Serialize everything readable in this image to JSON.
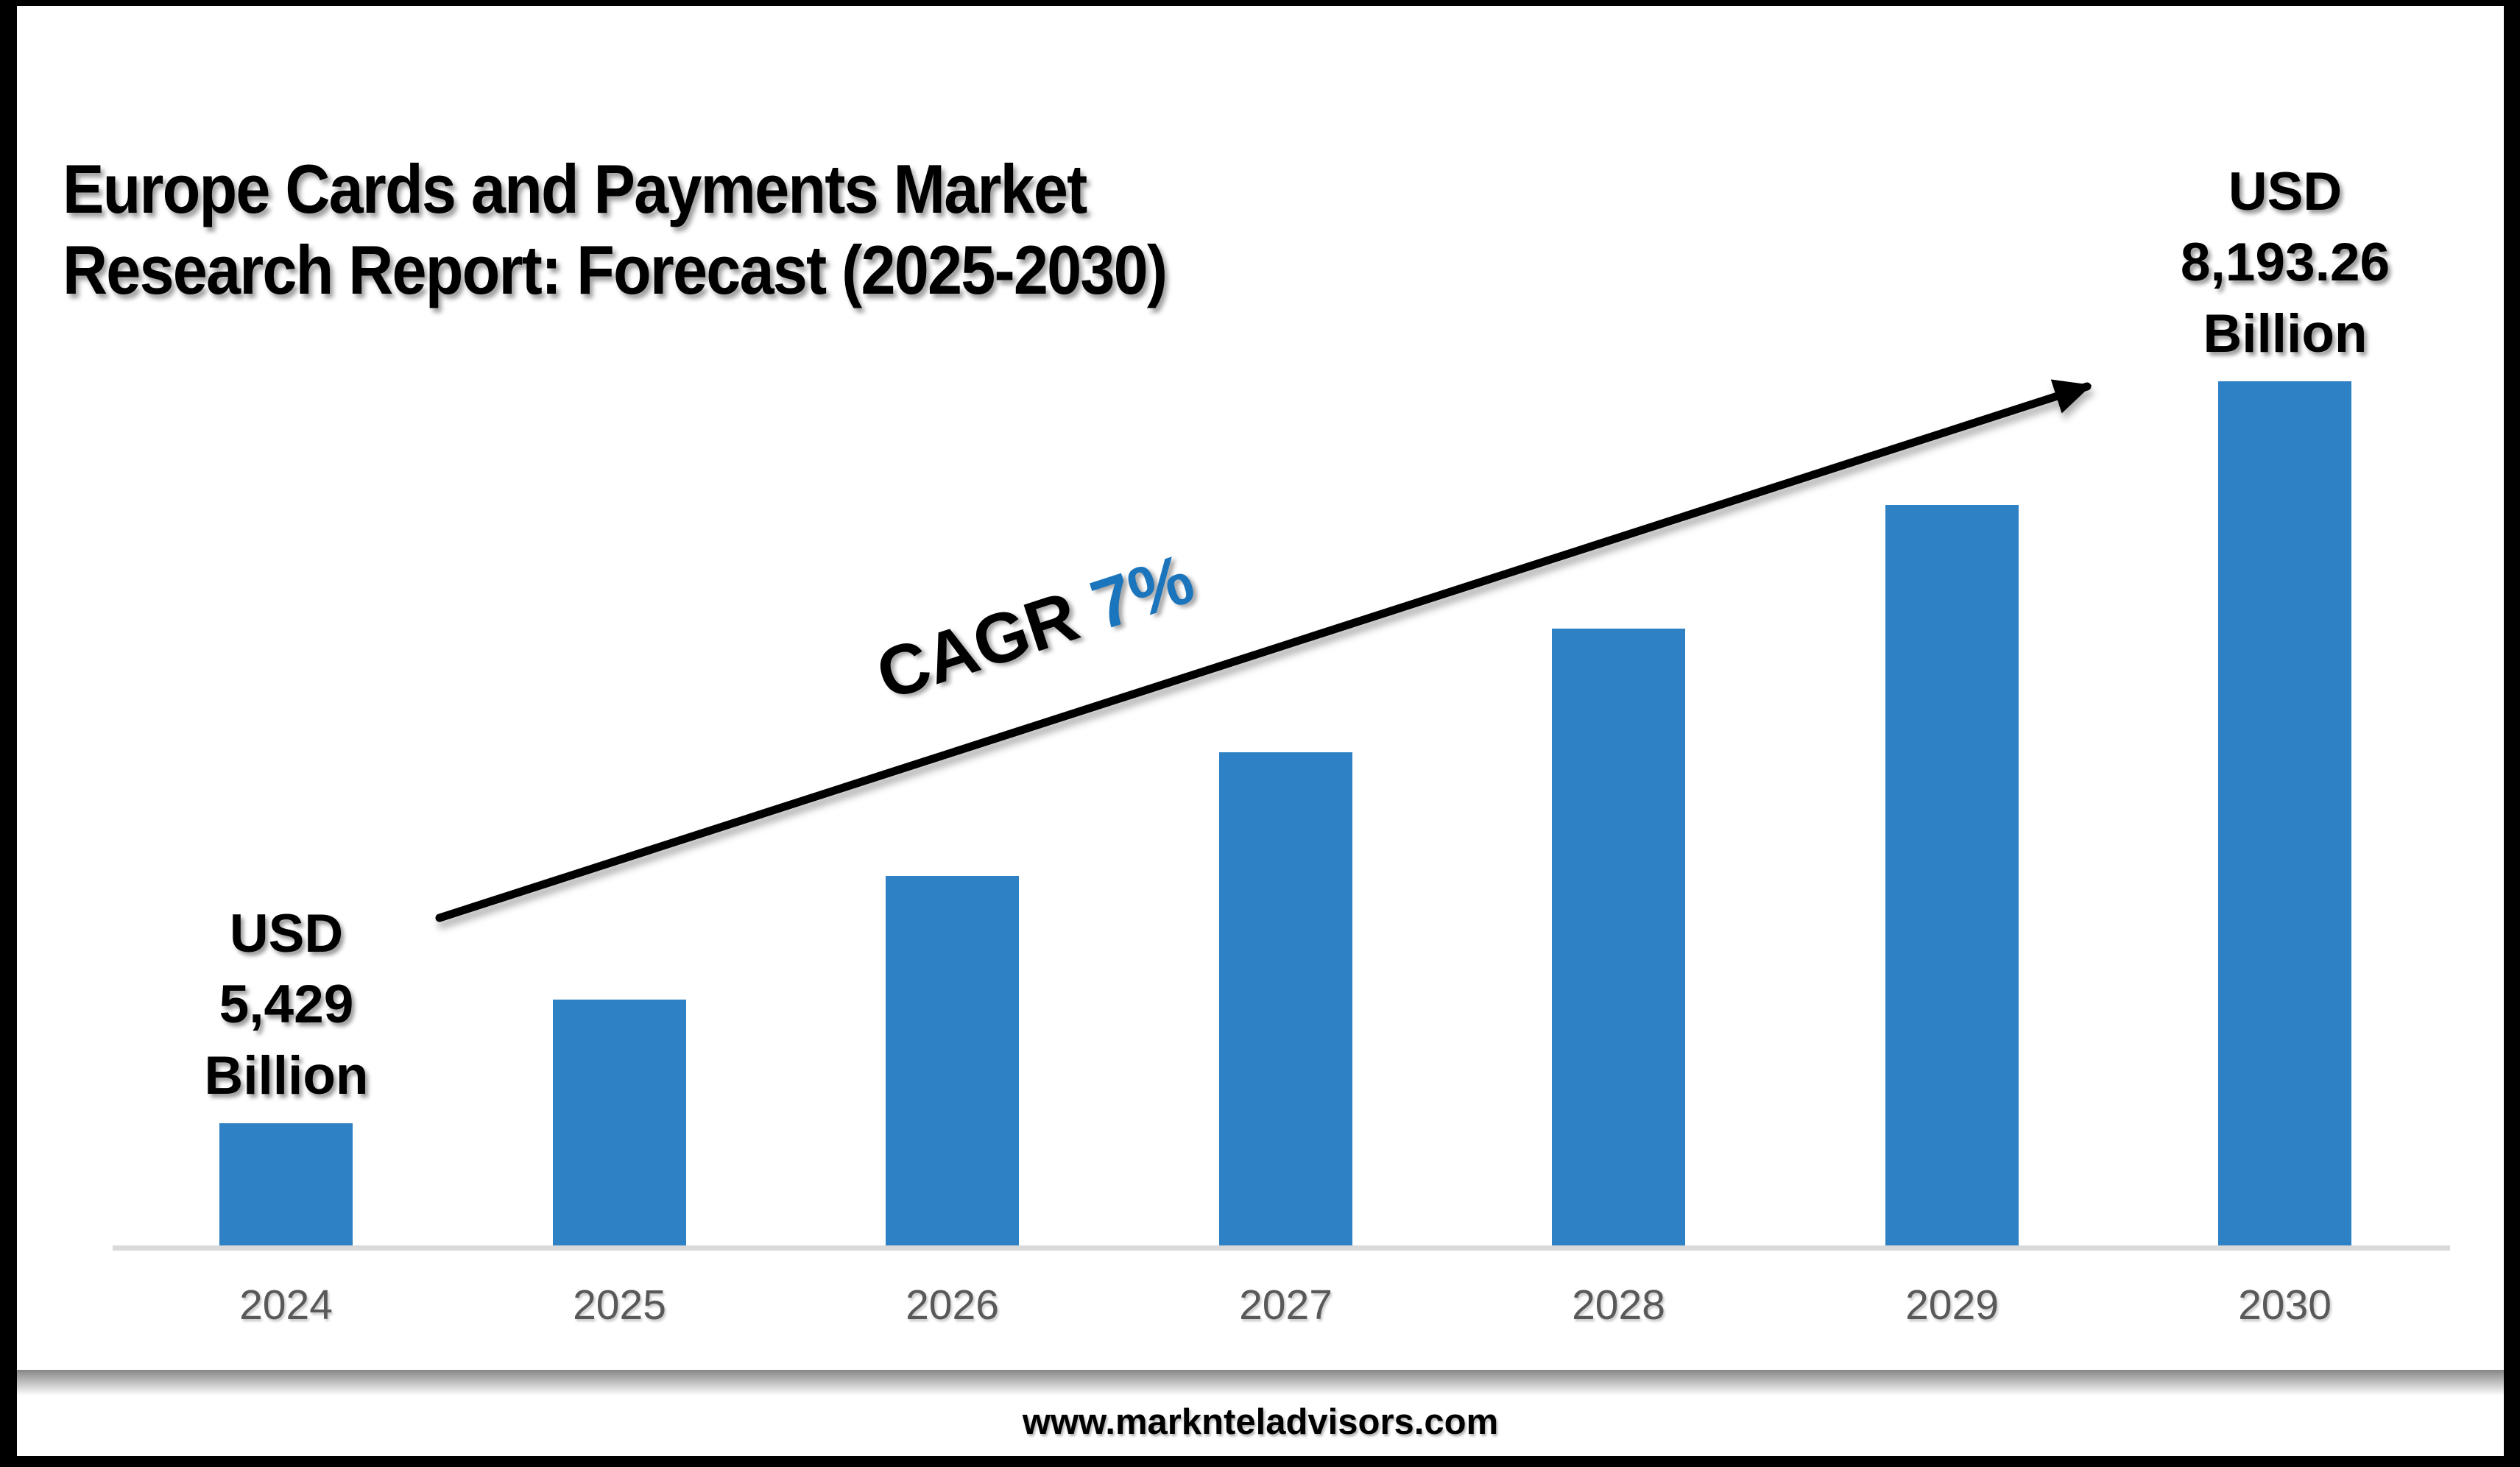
{
  "title": {
    "line1": "Europe Cards and Payments Market",
    "line2": "Research Report: Forecast (2025-2030)"
  },
  "annotation": {
    "cagr_label": "CAGR",
    "cagr_value": "7%"
  },
  "footer": {
    "url": "www.marknteladvisors.com"
  },
  "colors": {
    "bar": "#2E81C4",
    "accent": "#1B75BC",
    "axis_line": "#D9D9D9",
    "year_label": "#595959",
    "frame": "#000000",
    "background": "#FFFFFF"
  },
  "chart_data": {
    "type": "bar",
    "title": "Europe Cards and Payments Market Research Report: Forecast (2025-2030)",
    "unit": "USD Billion",
    "categories": [
      "2024",
      "2025",
      "2026",
      "2027",
      "2028",
      "2029",
      "2030"
    ],
    "values": [
      5429,
      5890,
      6350,
      6811,
      7272,
      7733,
      8193.26
    ],
    "labeled_values": {
      "2024": "USD 5,429 Billion",
      "2030": "USD 8,193.26 Billion"
    },
    "bar_labels": [
      {
        "category": "2024",
        "lines": [
          "USD",
          "5,429",
          "Billion"
        ]
      },
      {
        "category": "2030",
        "lines": [
          "USD",
          "8,193.26",
          "Billion"
        ]
      }
    ],
    "cagr": "7%",
    "xlabel": "",
    "ylabel": "",
    "gridlines": false,
    "legend": "none",
    "axis_starts_at_zero": false
  }
}
